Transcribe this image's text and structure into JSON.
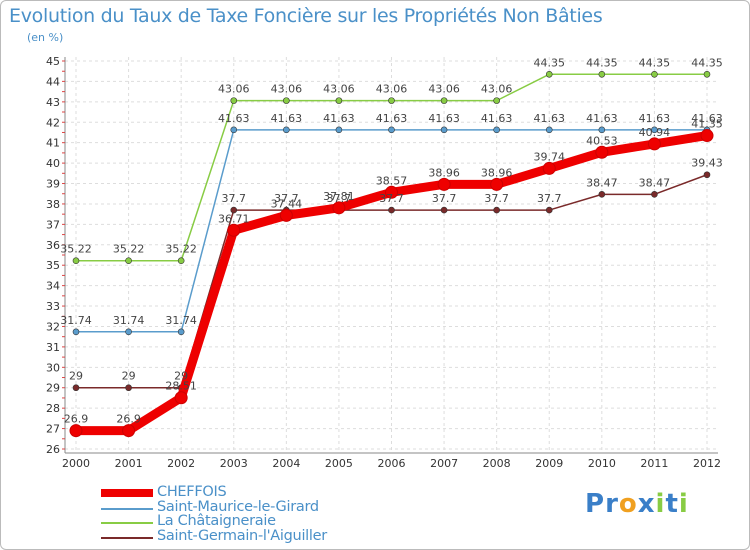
{
  "chart_data": {
    "type": "line",
    "title": "Evolution du Taux de Taxe Foncière sur les Propriétés Non Bâties",
    "subtitle": "(en %)",
    "x": [
      "2000",
      "2001",
      "2002",
      "2003",
      "2004",
      "2005",
      "2006",
      "2007",
      "2008",
      "2009",
      "2010",
      "2011",
      "2012"
    ],
    "ylim": [
      26,
      45
    ],
    "yticks": [
      26,
      27,
      28,
      29,
      30,
      31,
      32,
      33,
      34,
      35,
      36,
      37,
      38,
      39,
      40,
      41,
      42,
      43,
      44,
      45
    ],
    "grid": true,
    "series": [
      {
        "name": "CHEFFOIS",
        "color": "#ee0000",
        "width": 9,
        "values": [
          26.9,
          26.9,
          28.51,
          36.71,
          37.44,
          37.81,
          38.57,
          38.96,
          38.96,
          39.74,
          40.53,
          40.94,
          41.35
        ],
        "labels": [
          "26.9",
          "26.9",
          "28.51",
          "36.71",
          "37.44",
          "37.81",
          "38.57",
          "38.96",
          "38.96",
          "39.74",
          "40.53",
          "40.94",
          "41.35"
        ]
      },
      {
        "name": "Saint-Maurice-le-Girard",
        "color": "#5a9ccc",
        "width": 1.5,
        "values": [
          31.74,
          31.74,
          31.74,
          41.63,
          41.63,
          41.63,
          41.63,
          41.63,
          41.63,
          41.63,
          41.63,
          41.63,
          41.63
        ],
        "labels": [
          "31.74",
          "31.74",
          "31.74",
          "41.63",
          "41.63",
          "41.63",
          "41.63",
          "41.63",
          "41.63",
          "41.63",
          "41.63",
          "41.63",
          "41.63"
        ]
      },
      {
        "name": "La Châtaigneraie",
        "color": "#88cc44",
        "width": 1.5,
        "values": [
          35.22,
          35.22,
          35.22,
          43.06,
          43.06,
          43.06,
          43.06,
          43.06,
          43.06,
          44.35,
          44.35,
          44.35,
          44.35
        ],
        "labels": [
          "35.22",
          "35.22",
          "35.22",
          "43.06",
          "43.06",
          "43.06",
          "43.06",
          "43.06",
          "43.06",
          "44.35",
          "44.35",
          "44.35",
          "44.35"
        ]
      },
      {
        "name": "Saint-Germain-l'Aiguiller",
        "color": "#7a2a2a",
        "width": 1.5,
        "values": [
          29,
          29,
          29,
          37.7,
          37.7,
          37.7,
          37.7,
          37.7,
          37.7,
          37.7,
          38.47,
          38.47,
          39.43
        ],
        "labels": [
          "29",
          "29",
          "29",
          "37.7",
          "37.7",
          "37.7",
          "37.7",
          "37.7",
          "37.7",
          "37.7",
          "38.47",
          "38.47",
          "39.43"
        ]
      }
    ]
  },
  "legend": {
    "items": [
      {
        "name": "CHEFFOIS",
        "color": "#ee0000"
      },
      {
        "name": "Saint-Maurice-le-Girard",
        "color": "#5a9ccc"
      },
      {
        "name": "La Châtaigneraie",
        "color": "#88cc44"
      },
      {
        "name": "Saint-Germain-l'Aiguiller",
        "color": "#7a2a2a"
      }
    ]
  },
  "logo": {
    "letters": [
      "P",
      "r",
      "o",
      "x",
      "i",
      "t",
      "i"
    ],
    "colors": [
      "#3a7fc8",
      "#3a7fc8",
      "#f0a020",
      "#3a7fc8",
      "#88cc44",
      "#3a7fc8",
      "#88cc44"
    ]
  }
}
